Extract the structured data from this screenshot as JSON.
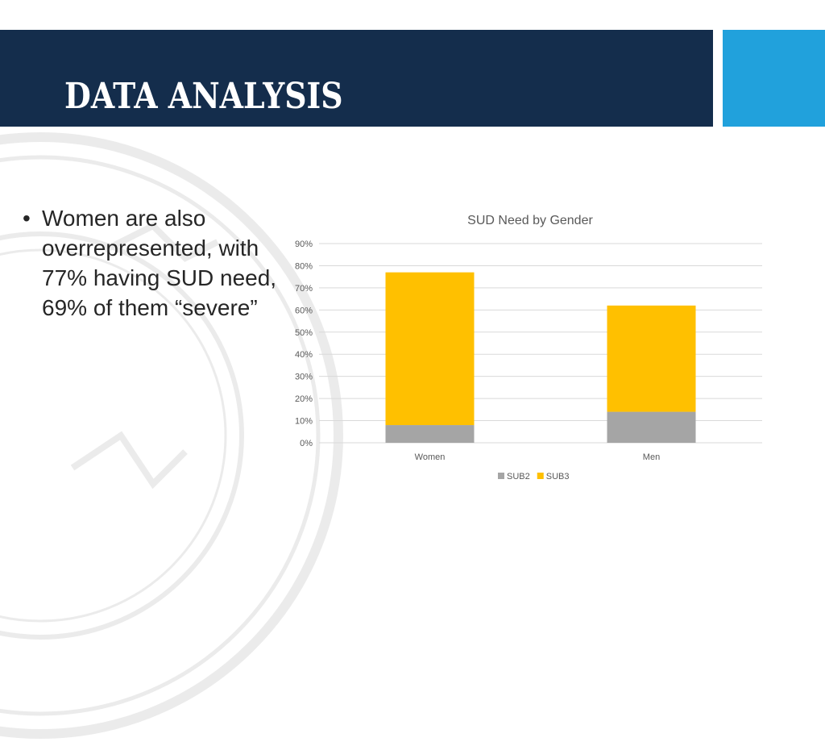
{
  "slide": {
    "title": "DATA ANALYSIS",
    "bullets": [
      "Women are also overrepresented, with 77% having SUD need, 69% of them “severe”"
    ],
    "bullet_glyph": "•",
    "colors": {
      "title_bar": "#142d4c",
      "accent_bar": "#21a1dc",
      "text": "#262626"
    },
    "watermark_icon": "department-seal-icon"
  },
  "chart_data": {
    "type": "bar",
    "stacked": true,
    "title": "SUD Need by Gender",
    "categories": [
      "Women",
      "Men"
    ],
    "series": [
      {
        "name": "SUB2",
        "values": [
          8,
          14
        ],
        "color": "#a5a5a5"
      },
      {
        "name": "SUB3",
        "values": [
          69,
          48
        ],
        "color": "#ffc000"
      }
    ],
    "ylim": [
      0,
      90
    ],
    "yticks": [
      0,
      10,
      20,
      30,
      40,
      50,
      60,
      70,
      80,
      90
    ],
    "ytick_suffix": "%",
    "grid": true,
    "legend_position": "bottom"
  }
}
